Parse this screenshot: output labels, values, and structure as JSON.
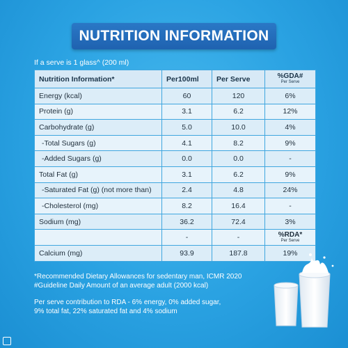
{
  "title": "NUTRITION INFORMATION",
  "serve_note": "If a serve is 1 glass^ (200 ml)",
  "table": {
    "headers": {
      "name": "Nutrition Information*",
      "per100": "Per100ml",
      "perserve": "Per Serve",
      "gda": "%GDA#",
      "gda_sub": "Per Serve"
    },
    "rows": [
      {
        "name": "Energy (kcal)",
        "per100": "60",
        "perserve": "120",
        "pct": "6%"
      },
      {
        "name": "Protein (g)",
        "per100": "3.1",
        "perserve": "6.2",
        "pct": "12%"
      },
      {
        "name": "Carbohydrate (g)",
        "per100": "5.0",
        "perserve": "10.0",
        "pct": "4%"
      },
      {
        "name": "-Total Sugars (g)",
        "per100": "4.1",
        "perserve": "8.2",
        "pct": "9%"
      },
      {
        "name": "-Added Sugars (g)",
        "per100": "0.0",
        "perserve": "0.0",
        "pct": "-"
      },
      {
        "name": "Total Fat (g)",
        "per100": "3.1",
        "perserve": "6.2",
        "pct": "9%"
      },
      {
        "name": "-Saturated Fat (g) (not more than)",
        "per100": "2.4",
        "perserve": "4.8",
        "pct": "24%"
      },
      {
        "name": "-Cholesterol (mg)",
        "per100": "8.2",
        "perserve": "16.4",
        "pct": "-"
      },
      {
        "name": "Sodium (mg)",
        "per100": "36.2",
        "perserve": "72.4",
        "pct": "3%"
      }
    ],
    "rda_row": {
      "name": "",
      "per100": "-",
      "perserve": "-",
      "label": "%RDA*",
      "sub": "Per Serve"
    },
    "calcium_row": {
      "name": "Calcium (mg)",
      "per100": "93.9",
      "perserve": "187.8",
      "pct": "19%"
    }
  },
  "footnotes": {
    "line1": "*Recommended Dietary Allowances for sedentary man, ICMR 2020",
    "line2": "#Guideline Daily Amount of an average adult (2000 kcal)",
    "line3": "Per serve contribution to RDA - 6% energy, 0% added sugar,",
    "line4": "9% total fat, 22% saturated fat and 4% sodium"
  }
}
